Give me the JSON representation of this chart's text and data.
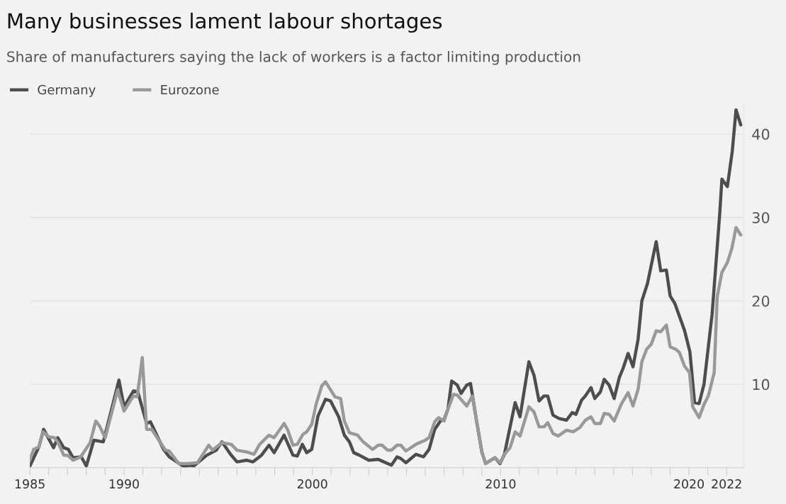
{
  "chart_data": {
    "type": "line",
    "title": "Many businesses lament labour shortages",
    "subtitle": "Share of manufacturers saying the lack of workers is a factor limiting production",
    "series": [
      {
        "name": "Germany",
        "color": "#4d4d4d",
        "x": [
          1985.0,
          1985.48,
          1985.73,
          1986.26,
          1986.48,
          1986.8,
          1987.04,
          1987.29,
          1987.73,
          1988.0,
          1988.4,
          1988.9,
          1989.73,
          1990.0,
          1990.5,
          1990.73,
          1991.2,
          1991.4,
          1992.1,
          1992.4,
          1993.2,
          1993.5,
          1993.7,
          1994.4,
          1994.9,
          1995.2,
          1995.66,
          1996.0,
          1996.5,
          1996.85,
          1997.3,
          1997.7,
          1997.97,
          1998.5,
          1998.97,
          1999.2,
          1999.47,
          1999.7,
          1999.97,
          2000.3,
          2000.7,
          2000.97,
          2001.4,
          2001.7,
          2001.97,
          2002.2,
          2002.5,
          2003.0,
          2003.5,
          2003.7,
          2004.2,
          2004.5,
          2004.7,
          2004.97,
          2005.5,
          2005.9,
          2006.2,
          2006.5,
          2006.8,
          2007.0,
          2007.2,
          2007.4,
          2007.7,
          2007.9,
          2008.2,
          2008.4,
          2008.7,
          2009.0,
          2009.2,
          2009.7,
          2009.97,
          2010.2,
          2010.77,
          2011.03,
          2011.5,
          2011.77,
          2012.04,
          2012.3,
          2012.5,
          2012.78,
          2013.1,
          2013.5,
          2013.8,
          2014.0,
          2014.3,
          2014.5,
          2014.8,
          2015.0,
          2015.3,
          2015.5,
          2015.76,
          2016.03,
          2016.3,
          2016.5,
          2016.77,
          2017.03,
          2017.3,
          2017.5,
          2017.8,
          2018.26,
          2018.5,
          2018.8,
          2019.0,
          2019.25,
          2019.76,
          2020.05,
          2020.3,
          2020.54,
          2020.8,
          2021.23,
          2021.64,
          2021.75,
          2022.04,
          2022.3,
          2022.5,
          2022.75
        ],
        "values": [
          0.2,
          2.5,
          4.6,
          2.4,
          3.6,
          2.4,
          2.2,
          1.2,
          1.3,
          0.2,
          3.3,
          3.1,
          10.5,
          7.3,
          9.2,
          9.1,
          5.3,
          5.5,
          2.2,
          1.3,
          0.1,
          0.3,
          0.2,
          1.5,
          2.1,
          3.1,
          1.6,
          0.7,
          0.9,
          0.7,
          1.5,
          2.7,
          1.8,
          3.9,
          1.5,
          1.4,
          2.8,
          1.8,
          2.2,
          6.2,
          8.2,
          8.0,
          6.1,
          3.9,
          3.1,
          1.8,
          1.5,
          0.9,
          1.0,
          0.8,
          0.3,
          1.3,
          1.1,
          0.6,
          1.6,
          1.3,
          2.2,
          4.6,
          5.6,
          5.8,
          7.0,
          10.4,
          9.9,
          8.9,
          9.9,
          10.1,
          5.9,
          1.9,
          0.5,
          1.2,
          0.5,
          1.6,
          7.8,
          6.1,
          12.7,
          11.1,
          8.0,
          8.6,
          8.6,
          6.3,
          5.9,
          5.7,
          6.6,
          6.4,
          8.1,
          8.6,
          9.6,
          8.3,
          9.1,
          10.6,
          9.9,
          8.3,
          10.8,
          11.9,
          13.7,
          12.1,
          15.4,
          20.0,
          22.1,
          27.1,
          23.6,
          23.7,
          20.6,
          19.7,
          16.5,
          13.9,
          7.8,
          7.7,
          10.0,
          18.4,
          30.6,
          34.6,
          33.7,
          37.9,
          42.9,
          41.1
        ]
      },
      {
        "name": "Eurozone",
        "color": "#999999",
        "x": [
          1985.0,
          1985.2,
          1985.48,
          1985.7,
          1986.0,
          1986.3,
          1986.5,
          1986.8,
          1987.0,
          1987.3,
          1987.7,
          1988.2,
          1988.5,
          1988.7,
          1989.0,
          1989.66,
          1990.0,
          1990.5,
          1990.7,
          1990.97,
          1991.2,
          1991.47,
          1992.2,
          1992.4,
          1992.9,
          1993.4,
          1993.9,
          1994.5,
          1994.7,
          1995.2,
          1995.7,
          1996.0,
          1996.5,
          1996.9,
          1997.2,
          1997.7,
          1997.97,
          1998.5,
          1998.7,
          1998.97,
          1999.2,
          1999.5,
          1999.7,
          1999.97,
          2000.2,
          2000.5,
          2000.7,
          2001.2,
          2001.5,
          2001.7,
          2001.97,
          2002.4,
          2002.7,
          2003.2,
          2003.5,
          2003.7,
          2004.0,
          2004.2,
          2004.5,
          2004.7,
          2004.97,
          2005.5,
          2005.8,
          2006.0,
          2006.2,
          2006.5,
          2006.7,
          2007.0,
          2007.2,
          2007.5,
          2007.7,
          2008.2,
          2008.5,
          2008.7,
          2009.0,
          2009.2,
          2009.7,
          2009.97,
          2010.2,
          2010.5,
          2010.77,
          2011.03,
          2011.5,
          2011.77,
          2012.04,
          2012.3,
          2012.5,
          2012.78,
          2013.05,
          2013.5,
          2013.85,
          2014.2,
          2014.5,
          2014.8,
          2015.0,
          2015.3,
          2015.5,
          2015.76,
          2016.03,
          2016.4,
          2016.77,
          2017.03,
          2017.3,
          2017.5,
          2017.75,
          2018.0,
          2018.26,
          2018.5,
          2018.8,
          2019.0,
          2019.3,
          2019.5,
          2019.76,
          2020.03,
          2020.2,
          2020.54,
          2020.8,
          2021.03,
          2021.34,
          2021.5,
          2021.75,
          2022.04,
          2022.28,
          2022.5,
          2022.75
        ],
        "values": [
          0.9,
          2.2,
          2.5,
          4.3,
          3.7,
          3.6,
          3.0,
          1.5,
          1.5,
          0.9,
          1.3,
          3.0,
          5.6,
          5.0,
          3.6,
          9.3,
          6.8,
          8.6,
          8.5,
          13.2,
          4.6,
          4.6,
          2.1,
          2.0,
          0.5,
          0.5,
          0.6,
          2.7,
          2.1,
          3.0,
          2.8,
          2.1,
          1.9,
          1.6,
          2.8,
          3.9,
          3.6,
          5.3,
          4.5,
          2.7,
          2.8,
          4.0,
          4.3,
          5.2,
          7.6,
          9.8,
          10.3,
          8.5,
          8.3,
          5.6,
          4.2,
          3.9,
          3.1,
          2.2,
          2.7,
          2.7,
          2.1,
          2.1,
          2.7,
          2.7,
          2.0,
          2.8,
          3.1,
          3.3,
          3.6,
          5.5,
          6.0,
          5.6,
          7.0,
          8.8,
          8.7,
          7.4,
          8.6,
          5.9,
          1.9,
          0.5,
          1.2,
          0.6,
          1.6,
          2.4,
          4.3,
          3.8,
          7.3,
          6.7,
          4.9,
          4.9,
          5.4,
          4.1,
          3.8,
          4.5,
          4.3,
          4.8,
          5.7,
          6.1,
          5.3,
          5.3,
          6.5,
          6.4,
          5.6,
          7.6,
          9.0,
          7.4,
          9.4,
          12.7,
          14.2,
          14.8,
          16.4,
          16.3,
          17.1,
          14.5,
          14.2,
          13.8,
          12.2,
          11.4,
          7.3,
          6.0,
          7.6,
          8.6,
          11.4,
          20.5,
          23.4,
          24.6,
          26.3,
          28.8,
          27.9
        ]
      }
    ],
    "xlim": [
      1985,
      2022.9
    ],
    "ylim": [
      0,
      43.5
    ],
    "xticks": [
      1985,
      {
        "value": 1986,
        "label": null
      },
      {
        "value": 1987,
        "label": null
      },
      {
        "value": 1988,
        "label": null
      },
      {
        "value": 1989,
        "label": null
      },
      1990,
      {
        "value": 1991,
        "label": null
      },
      {
        "value": 1992,
        "label": null
      },
      {
        "value": 1993,
        "label": null
      },
      {
        "value": 1994,
        "label": null
      },
      {
        "value": 1995,
        "label": null
      },
      {
        "value": 1996,
        "label": null
      },
      {
        "value": 1997,
        "label": null
      },
      {
        "value": 1998,
        "label": null
      },
      {
        "value": 1999,
        "label": null
      },
      2000,
      {
        "value": 2001,
        "label": null
      },
      {
        "value": 2002,
        "label": null
      },
      {
        "value": 2003,
        "label": null
      },
      {
        "value": 2004,
        "label": null
      },
      {
        "value": 2005,
        "label": null
      },
      {
        "value": 2006,
        "label": null
      },
      {
        "value": 2007,
        "label": null
      },
      {
        "value": 2008,
        "label": null
      },
      {
        "value": 2009,
        "label": null
      },
      2010,
      {
        "value": 2011,
        "label": null
      },
      {
        "value": 2012,
        "label": null
      },
      {
        "value": 2013,
        "label": null
      },
      {
        "value": 2014,
        "label": null
      },
      {
        "value": 2015,
        "label": null
      },
      {
        "value": 2016,
        "label": null
      },
      {
        "value": 2017,
        "label": null
      },
      {
        "value": 2018,
        "label": null
      },
      {
        "value": 2019,
        "label": null
      },
      2020,
      {
        "value": 2021,
        "label": null
      },
      2022
    ],
    "yticks": [
      10,
      20,
      30,
      40
    ],
    "grid": "y",
    "legend": "top left",
    "marker": "none",
    "line_style": "solid"
  }
}
